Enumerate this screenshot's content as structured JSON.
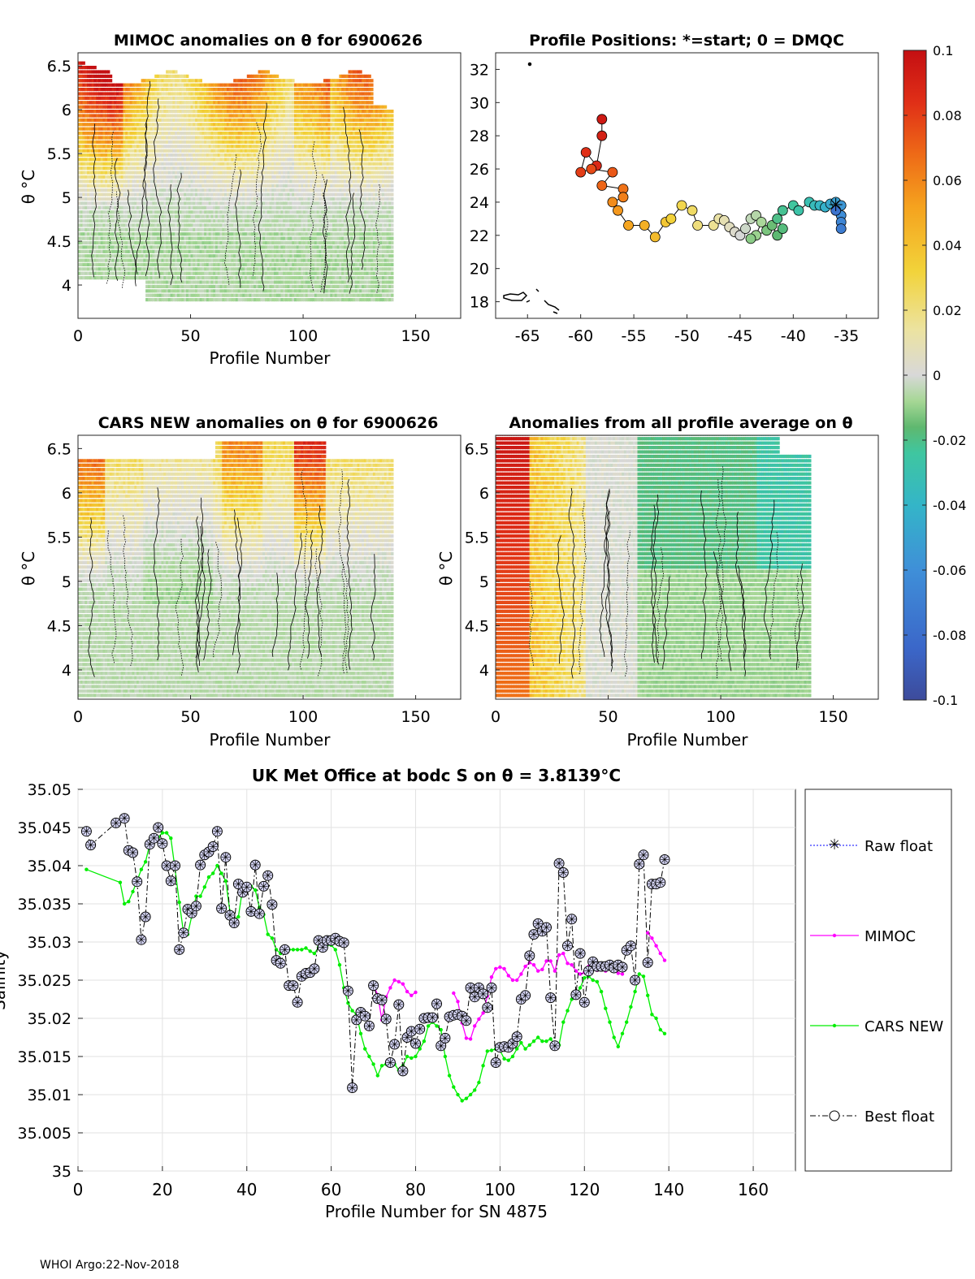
{
  "figure_colors": {
    "colormap": [
      "#3d4b9b",
      "#3b67c9",
      "#3f8fd8",
      "#34b5c8",
      "#3fc6a0",
      "#5fb86f",
      "#a6d795",
      "#d8d8d8",
      "#ece3a0",
      "#f2d33a",
      "#f5a21e",
      "#ee6a17",
      "#e02f17",
      "#c40f12"
    ],
    "raw_float": "#0000ff",
    "mimoc": "#ff00ff",
    "cars": "#00ee00",
    "best": "#000000"
  },
  "panels": {
    "mimoc": {
      "title": "MIMOC anomalies on θ  for 6900626",
      "xlabel": "Profile Number",
      "ylabel": "θ °C",
      "xticks": [
        "0",
        "50",
        "100",
        "150"
      ],
      "yticks": [
        "4",
        "4.5",
        "5",
        "5.5",
        "6",
        "6.5"
      ]
    },
    "positions": {
      "title": "Profile Positions: *=start; 0 = DMQC",
      "xticks": [
        "-65",
        "-60",
        "-55",
        "-50",
        "-45",
        "-40",
        "-35"
      ],
      "yticks": [
        "18",
        "20",
        "22",
        "24",
        "26",
        "28",
        "30",
        "32"
      ]
    },
    "cars": {
      "title": "CARS NEW anomalies on θ for 6900626",
      "xlabel": "Profile Number",
      "ylabel": "θ °C",
      "xticks": [
        "0",
        "50",
        "100",
        "150"
      ],
      "yticks": [
        "4",
        "4.5",
        "5",
        "5.5",
        "6",
        "6.5"
      ]
    },
    "allavg": {
      "title": "Anomalies from all profile average on θ",
      "xlabel": "Profile Number",
      "ylabel": "θ °C",
      "xticks": [
        "0",
        "50",
        "100",
        "150"
      ],
      "yticks": [
        "4",
        "4.5",
        "5",
        "5.5",
        "6",
        "6.5"
      ]
    }
  },
  "colorbar": {
    "ticks": [
      "0.1",
      "0.08",
      "0.06",
      "0.04",
      "0.02",
      "0",
      "-0.02",
      "-0.04",
      "-0.06",
      "-0.08",
      "-0.1"
    ]
  },
  "footer": "WHOI Argo:22-Nov-2018",
  "chart_data": {
    "type": "line",
    "title": "UK Met Office at bodc S on θ = 3.8139°C",
    "xlabel": "Profile Number for SN 4875",
    "ylabel": "Salinity",
    "xlim": [
      0,
      170
    ],
    "ylim": [
      35.0,
      35.05
    ],
    "xticks": [
      "0",
      "20",
      "40",
      "60",
      "80",
      "100",
      "120",
      "140",
      "160"
    ],
    "yticks": [
      "35",
      "35.005",
      "35.01",
      "35.015",
      "35.02",
      "35.025",
      "35.03",
      "35.035",
      "35.04",
      "35.045",
      "35.05"
    ],
    "grid": true,
    "legend_position": "right",
    "legend": [
      "Raw float",
      "MIMOC",
      "CARS NEW",
      "Best float"
    ],
    "series": [
      {
        "name": "Best float",
        "x": [
          2,
          3,
          9,
          11,
          12,
          13,
          14,
          15,
          16,
          17,
          18,
          19,
          20,
          21,
          22,
          23,
          24,
          25,
          26,
          27,
          28,
          29,
          30,
          31,
          32,
          33,
          34,
          35,
          36,
          37,
          38,
          39,
          40,
          41,
          42,
          43,
          44,
          45,
          46,
          47,
          48,
          49,
          50,
          51,
          52,
          53,
          54,
          55,
          56,
          57,
          58,
          59,
          60,
          61,
          62,
          63,
          64,
          65,
          66,
          67,
          68,
          69,
          70,
          71,
          72,
          73,
          74,
          75,
          76,
          77,
          78,
          79,
          80,
          81,
          82,
          83,
          84,
          85,
          86,
          87,
          88,
          89,
          90,
          91,
          92,
          93,
          94,
          95,
          96,
          97,
          98,
          99,
          100,
          101,
          102,
          103,
          104,
          105,
          106,
          107,
          108,
          109,
          110,
          111,
          112,
          113,
          114,
          115,
          116,
          117,
          118,
          119,
          120,
          121,
          122,
          123,
          124,
          125,
          126,
          127,
          128,
          129,
          130,
          131,
          132,
          133,
          134,
          135,
          136,
          137,
          138,
          139
        ],
        "y": [
          35.0445,
          35.0427,
          35.0456,
          35.0462,
          35.042,
          35.0417,
          35.0379,
          35.0303,
          35.0333,
          35.0428,
          35.0436,
          35.045,
          35.0429,
          35.04,
          35.038,
          35.04,
          35.029,
          35.0312,
          35.0343,
          35.0338,
          35.0347,
          35.0401,
          35.0414,
          35.0418,
          35.0425,
          35.0445,
          35.0344,
          35.0411,
          35.0335,
          35.0325,
          35.0376,
          35.0365,
          35.0372,
          35.034,
          35.0401,
          35.0337,
          35.0373,
          35.0387,
          35.0349,
          35.0276,
          35.0272,
          35.029,
          35.0243,
          35.0243,
          35.0221,
          35.0255,
          35.0259,
          35.026,
          35.0265,
          35.0302,
          35.0293,
          35.0302,
          35.0302,
          35.0305,
          35.0301,
          35.0299,
          35.0236,
          35.0109,
          35.0198,
          35.0208,
          35.0203,
          35.019,
          35.0243,
          35.0226,
          35.0224,
          35.0199,
          35.0142,
          35.0166,
          35.0218,
          35.0131,
          35.0175,
          35.0183,
          35.0167,
          35.0186,
          35.02,
          35.0201,
          35.0201,
          35.0219,
          35.0164,
          35.0174,
          35.0202,
          35.0204,
          35.0205,
          35.0203,
          35.0197,
          35.024,
          35.0228,
          35.024,
          35.0232,
          35.0214,
          35.024,
          35.0142,
          35.0162,
          35.0163,
          35.0162,
          35.0167,
          35.0176,
          35.0225,
          35.023,
          35.0282,
          35.031,
          35.0324,
          35.0314,
          35.0319,
          35.0227,
          35.0164,
          35.0403,
          35.0391,
          35.0295,
          35.033,
          35.0231,
          35.0285,
          35.0221,
          35.0262,
          35.0274,
          35.0268,
          35.0268,
          35.0268,
          35.027,
          35.0266,
          35.027,
          35.0267,
          35.0289,
          35.0295,
          35.025,
          35.0402,
          35.0414,
          35.0273,
          35.0376,
          35.0376,
          35.0378,
          35.0408
        ]
      },
      {
        "name": "MIMOC",
        "segments": [
          {
            "x": [
              70,
              71,
              72,
              73,
              74,
              75,
              76,
              77,
              78,
              79,
              80
            ],
            "y": [
              35.0244,
              35.0231,
              35.0198,
              35.0228,
              35.024,
              35.025,
              35.0248,
              35.0245,
              35.0235,
              35.023,
              35.0234
            ]
          },
          {
            "x": [
              89,
              90,
              91,
              92,
              93,
              94,
              95,
              96,
              97,
              98,
              99,
              100,
              101,
              102,
              103,
              104,
              105,
              106,
              107,
              108,
              109,
              110,
              111,
              112,
              113,
              114,
              115,
              116,
              117,
              118,
              119,
              120,
              121,
              122,
              123,
              124,
              125,
              126,
              127,
              128,
              129
            ],
            "y": [
              35.0233,
              35.0222,
              35.0194,
              35.0174,
              35.0173,
              35.019,
              35.0199,
              35.0207,
              35.0229,
              35.0254,
              35.0265,
              35.0267,
              35.0265,
              35.0256,
              35.025,
              35.025,
              35.0258,
              35.0268,
              35.0273,
              35.027,
              35.0262,
              35.0264,
              35.0275,
              35.0275,
              35.0262,
              35.0283,
              35.0285,
              35.0272,
              35.027,
              35.0262,
              35.0258,
              35.026,
              35.0268,
              35.0268,
              35.0263,
              35.0266,
              35.0262,
              35.0268,
              35.027,
              35.0259,
              35.0258
            ]
          },
          {
            "x": [
              135,
              136,
              137,
              138,
              139
            ],
            "y": [
              35.0312,
              35.0305,
              35.0295,
              35.0285,
              35.0276
            ]
          }
        ]
      },
      {
        "name": "CARS NEW",
        "x": [
          2,
          10,
          11,
          12,
          13,
          14,
          15,
          16,
          17,
          18,
          19,
          20,
          21,
          22,
          23,
          24,
          25,
          26,
          27,
          28,
          29,
          30,
          31,
          32,
          33,
          34,
          35,
          36,
          37,
          38,
          39,
          40,
          41,
          42,
          43,
          44,
          45,
          46,
          47,
          48,
          49,
          50,
          51,
          52,
          53,
          54,
          55,
          56,
          57,
          58,
          59,
          60,
          61,
          62,
          63,
          64,
          65,
          66,
          67,
          68,
          69,
          70,
          71,
          72,
          73,
          74,
          75,
          76,
          77,
          78,
          79,
          80,
          81,
          82,
          83,
          84,
          85,
          86,
          87,
          88,
          89,
          90,
          91,
          92,
          93,
          94,
          95,
          96,
          97,
          98,
          99,
          100,
          101,
          102,
          103,
          104,
          105,
          106,
          107,
          108,
          109,
          110,
          111,
          112,
          113,
          114,
          115,
          116,
          117,
          118,
          119,
          120,
          121,
          122,
          123,
          124,
          125,
          126,
          127,
          128,
          129,
          130,
          131,
          132,
          133,
          134,
          135,
          136,
          137,
          138,
          139
        ],
        "y": [
          35.0395,
          35.0378,
          35.035,
          35.0353,
          35.0366,
          35.038,
          35.0395,
          35.0405,
          35.0428,
          35.044,
          35.0437,
          35.0443,
          35.0443,
          35.0436,
          35.0395,
          35.0352,
          35.0312,
          35.031,
          35.0335,
          35.036,
          35.036,
          35.0372,
          35.0385,
          35.039,
          35.04,
          35.039,
          35.038,
          35.034,
          35.033,
          35.0333,
          35.037,
          35.0375,
          35.0373,
          35.0368,
          35.0345,
          35.0336,
          35.031,
          35.0305,
          35.029,
          35.0285,
          35.029,
          35.029,
          35.029,
          35.029,
          35.029,
          35.0292,
          35.0288,
          35.0285,
          35.0293,
          35.0293,
          35.0296,
          35.0296,
          35.029,
          35.027,
          35.024,
          35.022,
          35.021,
          35.0205,
          35.018,
          35.016,
          35.015,
          35.014,
          35.0125,
          35.0138,
          35.014,
          35.0145,
          35.014,
          35.0132,
          35.0138,
          35.015,
          35.0148,
          35.015,
          35.016,
          35.017,
          35.019,
          35.0195,
          35.019,
          35.0185,
          35.015,
          35.0125,
          35.011,
          35.01,
          35.0092,
          35.0095,
          35.01,
          35.0106,
          35.0116,
          35.0138,
          35.0157,
          35.0158,
          35.016,
          35.0158,
          35.0147,
          35.0145,
          35.015,
          35.016,
          35.0168,
          35.016,
          35.0165,
          35.017,
          35.0175,
          35.017,
          35.017,
          35.0173,
          35.0165,
          35.0165,
          35.0195,
          35.021,
          35.0225,
          35.023,
          35.024,
          35.0253,
          35.0255,
          35.025,
          35.0248,
          35.0235,
          35.0213,
          35.0195,
          35.0175,
          35.0163,
          35.018,
          35.0195,
          35.0215,
          35.0235,
          35.0258,
          35.0255,
          35.023,
          35.0205,
          35.02,
          35.0185,
          35.018
        ]
      }
    ]
  }
}
